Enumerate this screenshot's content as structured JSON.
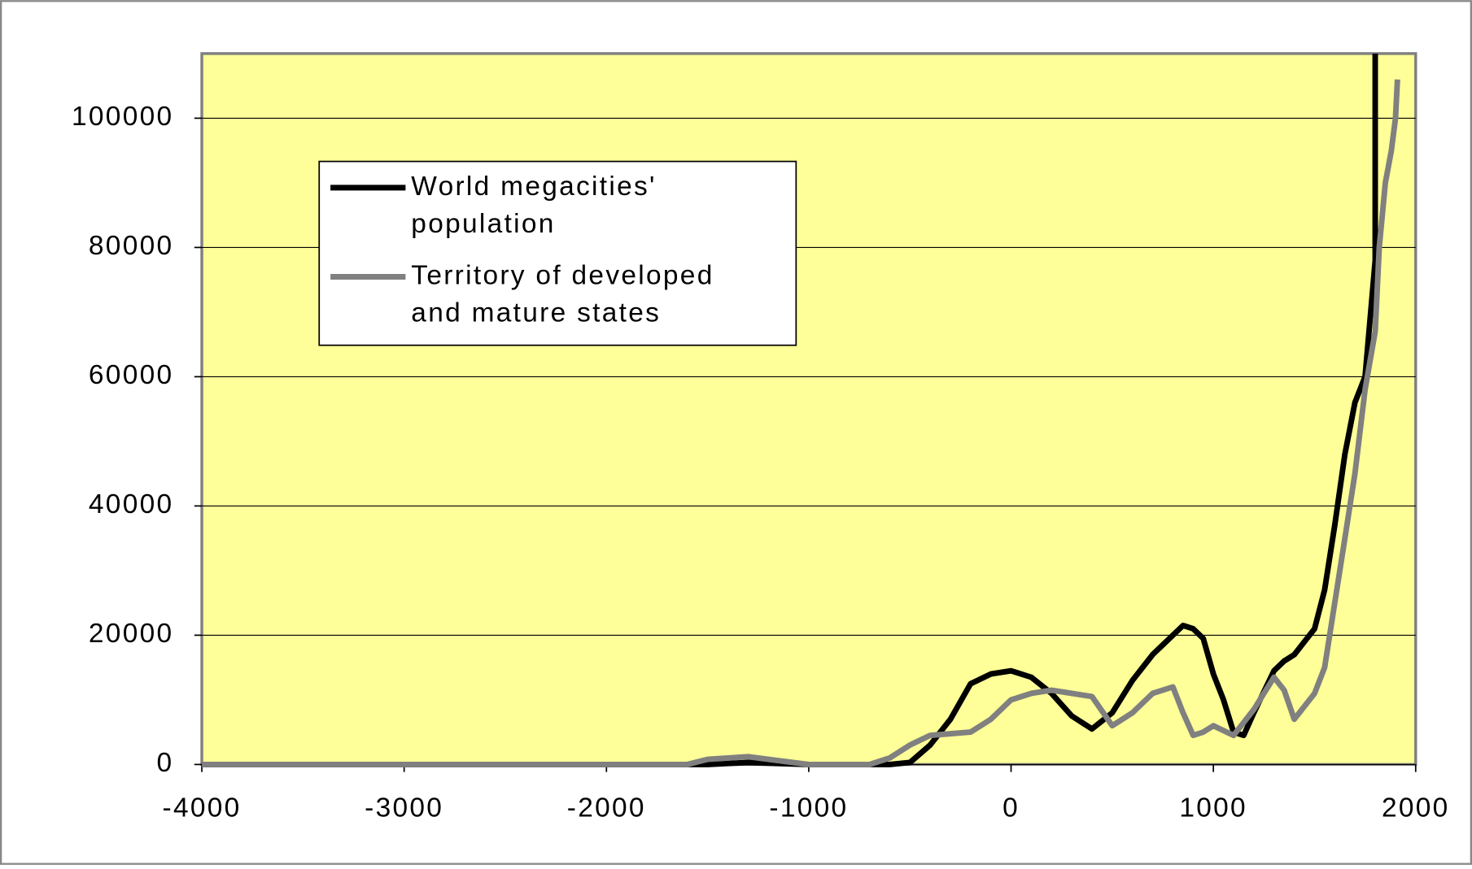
{
  "chart_data": {
    "type": "line",
    "xlim": [
      -4000,
      2000
    ],
    "xticks": [
      -4000,
      -3000,
      -2000,
      -1000,
      0,
      1000,
      2000
    ],
    "ylim": [
      0,
      110000
    ],
    "yticks": [
      0,
      20000,
      40000,
      60000,
      80000,
      100000
    ],
    "grid": true,
    "legend": "upper left",
    "series": [
      {
        "name": "World megacities' population",
        "color": "#000000",
        "x": [
          -4000,
          -3000,
          -2000,
          -1500,
          -1300,
          -1000,
          -700,
          -600,
          -500,
          -400,
          -300,
          -200,
          -100,
          0,
          100,
          200,
          300,
          400,
          500,
          600,
          700,
          800,
          850,
          900,
          950,
          1000,
          1050,
          1100,
          1150,
          1200,
          1300,
          1350,
          1400,
          1450,
          1500,
          1550,
          1600,
          1650,
          1700,
          1750,
          1800,
          1800
        ],
        "values": [
          0,
          0,
          0,
          0,
          300,
          0,
          0,
          0,
          300,
          3000,
          7000,
          12500,
          14000,
          14500,
          13500,
          11000,
          7500,
          5500,
          8000,
          13000,
          17000,
          20000,
          21500,
          21000,
          19500,
          14000,
          10000,
          5000,
          4500,
          8000,
          14500,
          16000,
          17000,
          19000,
          21000,
          27000,
          37000,
          48000,
          56000,
          60000,
          78000,
          110000
        ]
      },
      {
        "name": "Territory of developed and mature states",
        "color": "#808080",
        "x": [
          -4000,
          -3000,
          -2000,
          -1600,
          -1500,
          -1300,
          -1200,
          -1000,
          -700,
          -600,
          -500,
          -400,
          -200,
          -100,
          0,
          100,
          200,
          300,
          400,
          500,
          600,
          700,
          800,
          850,
          900,
          950,
          1000,
          1100,
          1150,
          1200,
          1300,
          1350,
          1400,
          1450,
          1500,
          1550,
          1600,
          1650,
          1700,
          1750,
          1800,
          1820,
          1850,
          1880,
          1900,
          1910
        ],
        "values": [
          0,
          0,
          0,
          0,
          800,
          1200,
          800,
          0,
          0,
          1000,
          3000,
          4500,
          5000,
          7000,
          10000,
          11000,
          11500,
          11000,
          10500,
          6000,
          8000,
          11000,
          12000,
          8000,
          4500,
          5000,
          6000,
          4500,
          6500,
          8500,
          13500,
          11500,
          7000,
          9000,
          11000,
          15000,
          25000,
          35000,
          45000,
          58000,
          67000,
          80000,
          90000,
          95000,
          100000,
          106000
        ]
      }
    ]
  }
}
